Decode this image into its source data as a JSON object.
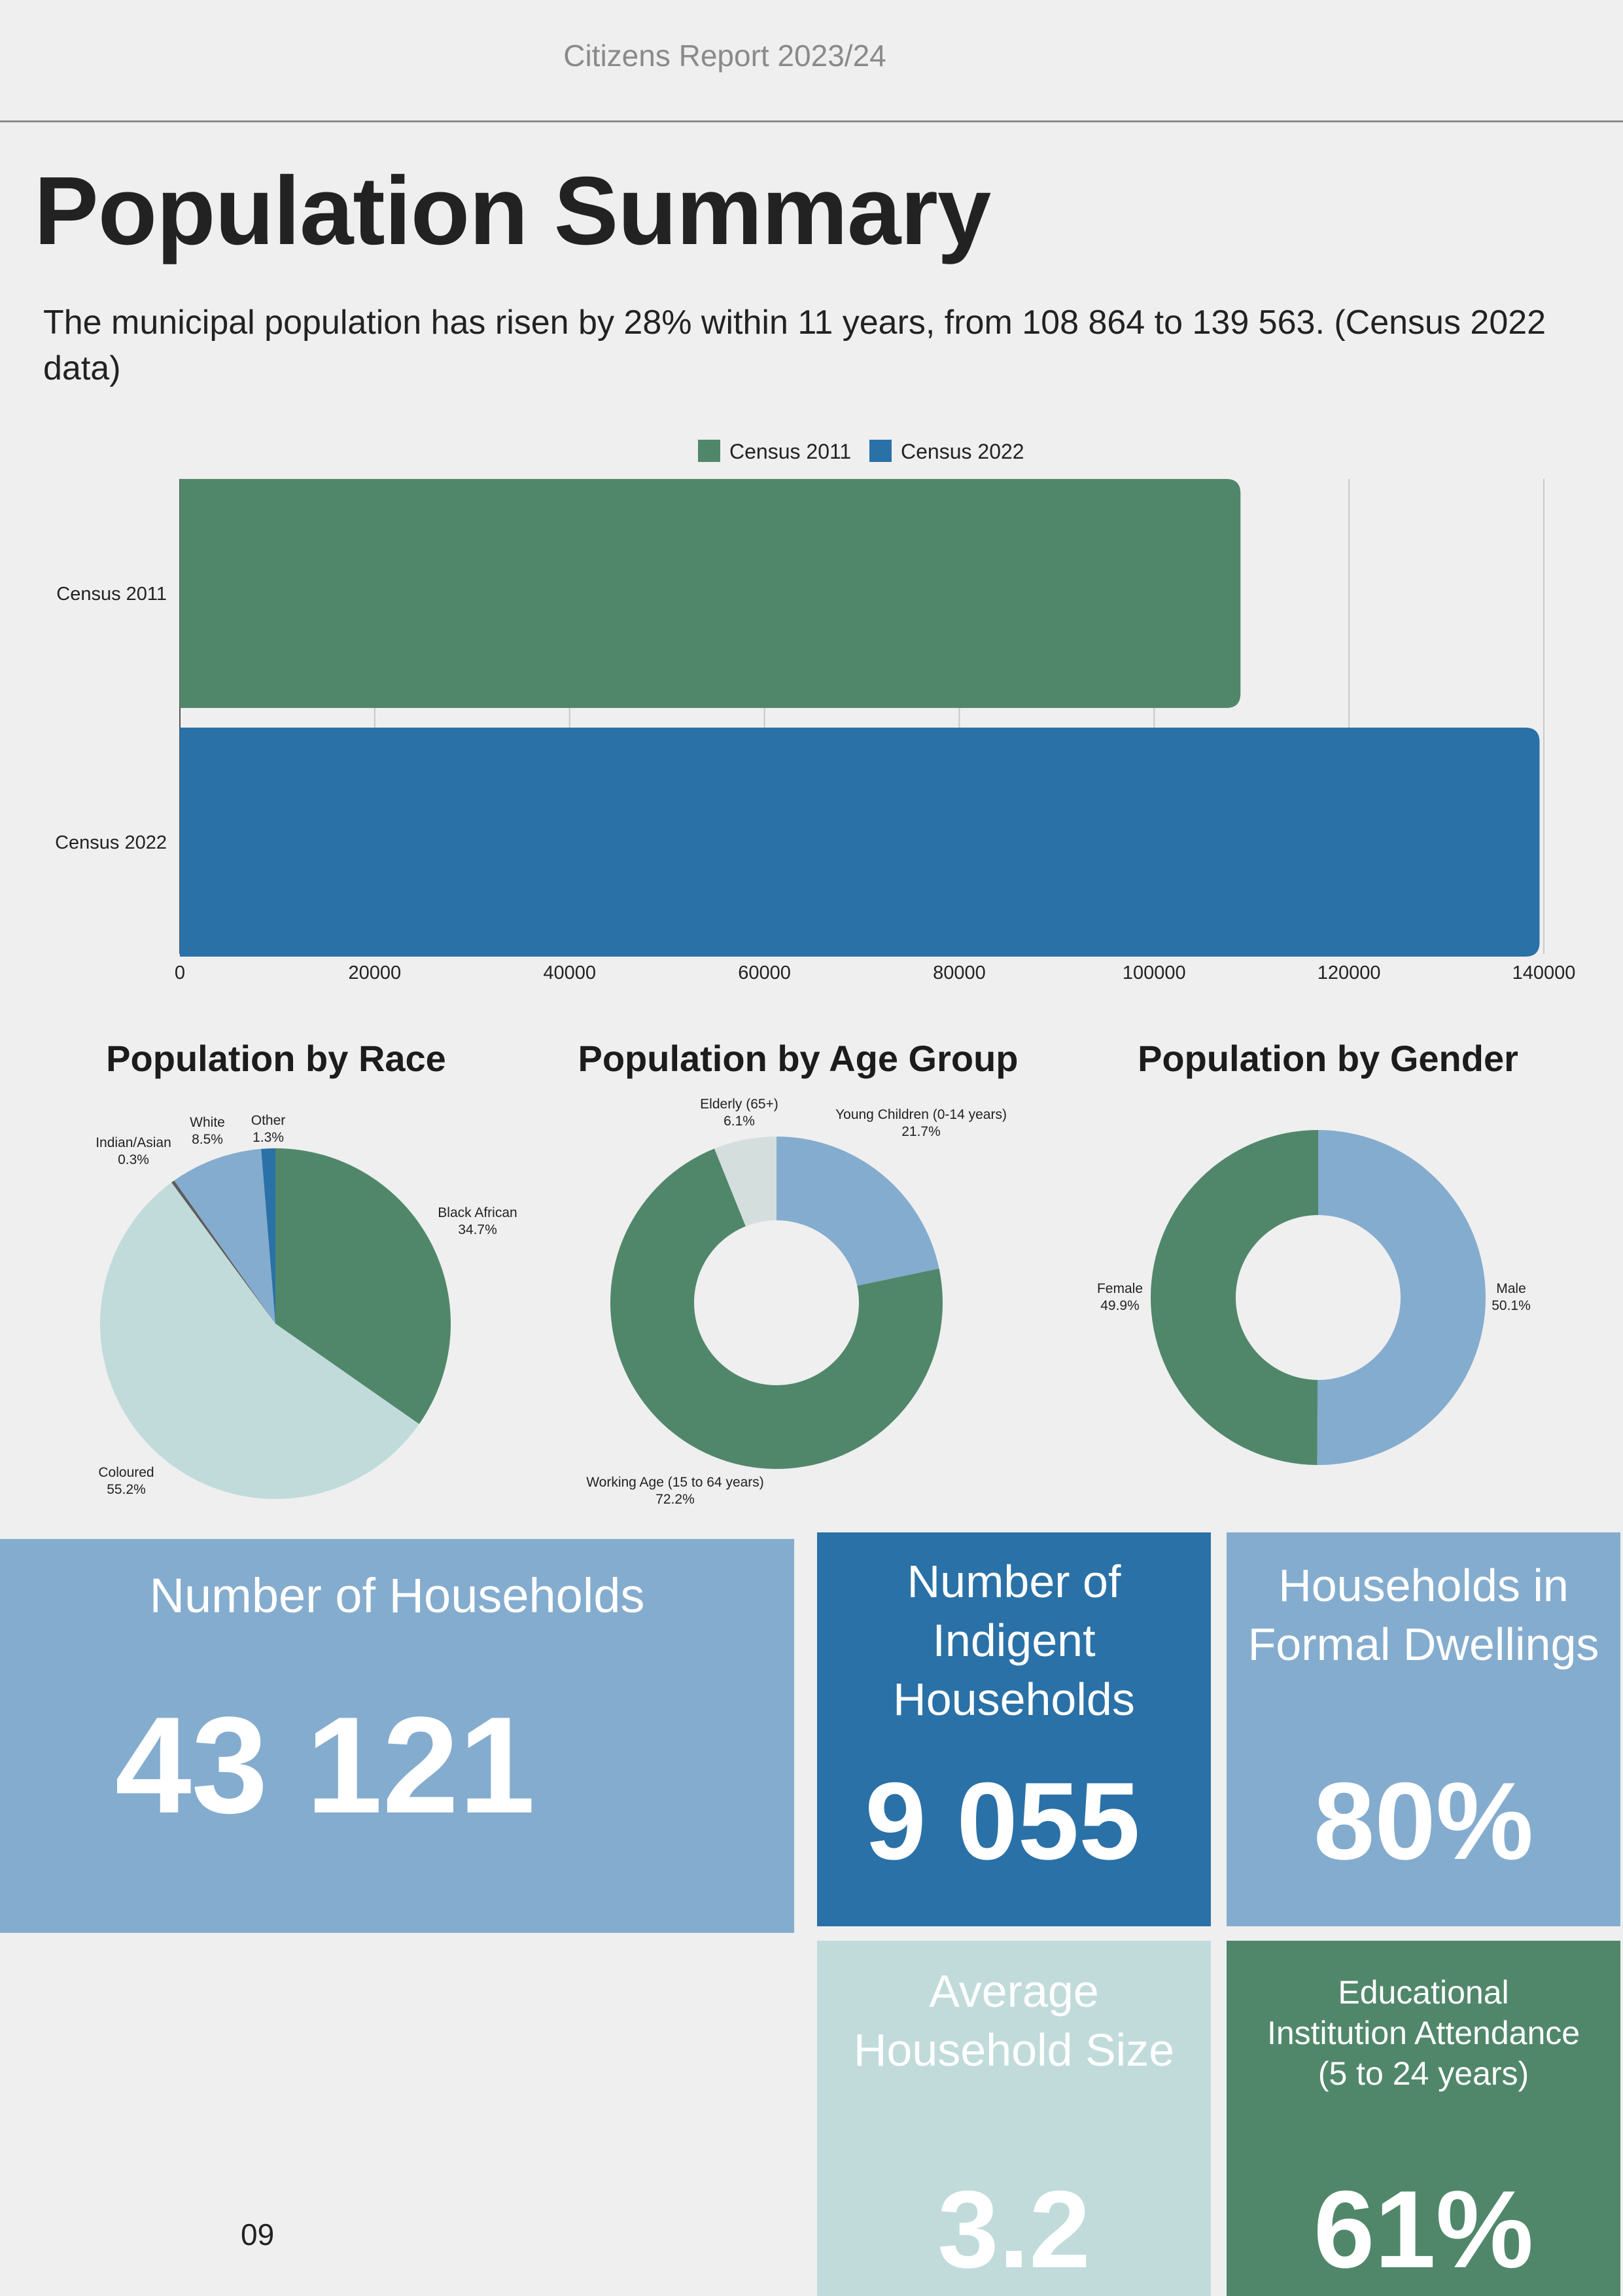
{
  "header": {
    "title": "Citizens Report 2023/24"
  },
  "page": {
    "title": "Population Summary",
    "intro": "The municipal population has risen by 28% within 11 years, from 108 864 to 139 563. (Census 2022 data)",
    "page_number": "09"
  },
  "colors": {
    "green": "#50876b",
    "dark_blue": "#2a71a7",
    "light_blue": "#84acce",
    "pale_teal": "#c1dbdb",
    "pale_grey_teal": "#d4dfdd",
    "background": "#efefef"
  },
  "chart_data": [
    {
      "type": "bar",
      "orientation": "horizontal",
      "title": "",
      "categories": [
        "Census 2011",
        "Census 2022"
      ],
      "values": [
        108864,
        139563
      ],
      "colors": [
        "#50876b",
        "#2a71a7"
      ],
      "legend": [
        "Census 2011",
        "Census 2022"
      ],
      "legend_position": "top",
      "xlim": [
        0,
        140000
      ],
      "xticks": [
        0,
        20000,
        40000,
        60000,
        80000,
        100000,
        120000,
        140000
      ],
      "grid": true
    },
    {
      "type": "pie",
      "title": "Population by Race",
      "slices": [
        {
          "name": "Black African",
          "value": 34.7,
          "label": "34.7%",
          "color": "#50876b"
        },
        {
          "name": "Coloured",
          "value": 55.2,
          "label": "55.2%",
          "color": "#c1dbdb"
        },
        {
          "name": "Indian/Asian",
          "value": 0.3,
          "label": "0.3%",
          "color": "#5c5c5c"
        },
        {
          "name": "White",
          "value": 8.5,
          "label": "8.5%",
          "color": "#84acce"
        },
        {
          "name": "Other",
          "value": 1.3,
          "label": "1.3%",
          "color": "#2a71a7"
        }
      ]
    },
    {
      "type": "pie",
      "donut": true,
      "title": "Population by Age Group",
      "slices": [
        {
          "name": "Young Children (0-14 years)",
          "value": 21.7,
          "label": "21.7%",
          "color": "#84acce"
        },
        {
          "name": "Working Age (15 to 64 years)",
          "value": 72.2,
          "label": "72.2%",
          "color": "#50876b"
        },
        {
          "name": "Elderly (65+)",
          "value": 6.1,
          "label": "6.1%",
          "color": "#d4dfdd"
        }
      ]
    },
    {
      "type": "pie",
      "donut": true,
      "title": "Population by Gender",
      "slices": [
        {
          "name": "Male",
          "value": 50.1,
          "label": "50.1%",
          "color": "#84acce"
        },
        {
          "name": "Female",
          "value": 49.9,
          "label": "49.9%",
          "color": "#50876b"
        }
      ]
    }
  ],
  "stats": {
    "households": {
      "label": "Number of Households",
      "value": "43 121"
    },
    "indigent": {
      "label": "Number of Indigent Households",
      "value": "9 055"
    },
    "formal": {
      "label": "Households in Formal Dwellings",
      "value": "80%"
    },
    "household_size": {
      "label": "Average Household Size",
      "value": "3.2"
    },
    "education": {
      "label": "Educational Institution Attendance (5 to 24 years)",
      "value": "61%"
    }
  }
}
